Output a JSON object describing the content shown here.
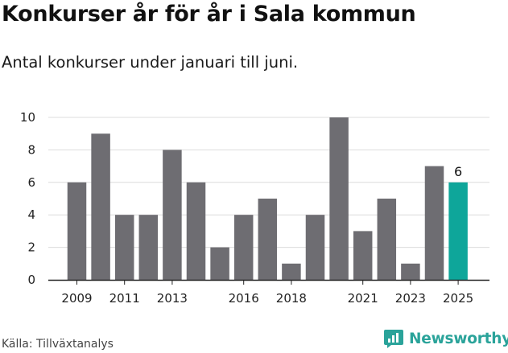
{
  "title": "Konkurser år för år i Sala kommun",
  "subtitle": "Antal konkurser under januari till juni.",
  "source": "Källa: Tillväxtanalys",
  "brand": {
    "name": "Newsworthy",
    "color": "#2aa39a",
    "icon": "newsworthy-logo-icon"
  },
  "colors": {
    "bar": "#6e6d72",
    "highlight": "#0ea69a",
    "grid": "#dcdcdc",
    "axis": "#222222"
  },
  "chart_data": {
    "type": "bar",
    "categories": [
      "2009",
      "2010",
      "2011",
      "2012",
      "2013",
      "2014",
      "2015",
      "2016",
      "2017",
      "2018",
      "2019",
      "2020",
      "2021",
      "2022",
      "2023",
      "2024",
      "2025"
    ],
    "values": [
      6,
      9,
      4,
      4,
      8,
      6,
      2,
      4,
      5,
      1,
      4,
      10,
      3,
      5,
      1,
      7,
      6
    ],
    "highlight_category": "2025",
    "data_labels": [
      {
        "category": "2025",
        "text": "6"
      }
    ],
    "x_tick_labels": [
      "2009",
      "2011",
      "2013",
      "2016",
      "2018",
      "2021",
      "2023",
      "2025"
    ],
    "y_ticks": [
      0,
      2,
      4,
      6,
      8,
      10
    ],
    "ylim": [
      0,
      10
    ],
    "grid": true,
    "xlabel": "",
    "ylabel": ""
  }
}
